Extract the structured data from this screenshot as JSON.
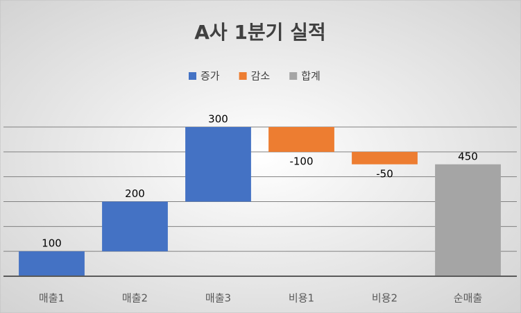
{
  "chart_data": {
    "type": "waterfall",
    "title": "A사 1분기 실적",
    "categories": [
      "매출1",
      "매출2",
      "매출3",
      "비용1",
      "비용2",
      "순매출"
    ],
    "series": [
      {
        "name": "증가",
        "color": "#4472c4",
        "values": [
          100,
          200,
          300,
          null,
          null,
          null
        ]
      },
      {
        "name": "감소",
        "color": "#ed7d31",
        "values": [
          null,
          null,
          null,
          -100,
          -50,
          null
        ]
      },
      {
        "name": "합계",
        "color": "#a5a5a5",
        "values": [
          null,
          null,
          null,
          null,
          null,
          450
        ]
      }
    ],
    "ylim": [
      0,
      600
    ],
    "yticks": [
      0,
      100,
      200,
      300,
      400,
      500,
      600
    ],
    "grid": true
  }
}
